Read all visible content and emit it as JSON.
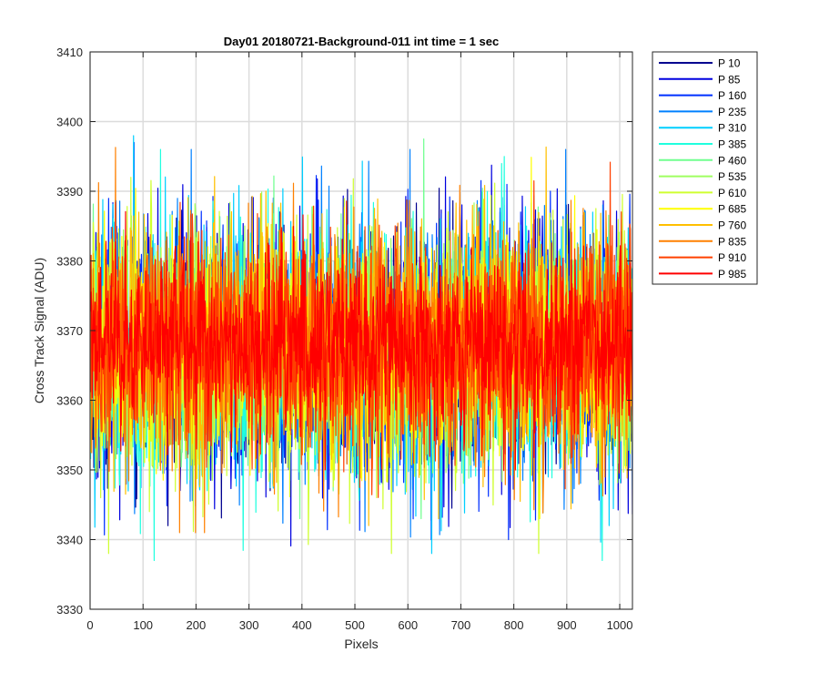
{
  "chart_data": {
    "type": "line",
    "title": "Day01 20180721-Background-011 int time = 1 sec",
    "xlabel": "Pixels",
    "ylabel": "Cross Track Signal (ADU)",
    "xlim": [
      0,
      1024
    ],
    "ylim": [
      3330,
      3410
    ],
    "xticks": [
      0,
      100,
      200,
      300,
      400,
      500,
      600,
      700,
      800,
      900,
      1000
    ],
    "yticks": [
      3330,
      3340,
      3350,
      3360,
      3370,
      3380,
      3390,
      3400,
      3410
    ],
    "grid": true,
    "legend_position": "outside-top-right",
    "series": [
      {
        "name": "P 10",
        "color": "#00008f",
        "mean": 3367,
        "min": 3342,
        "max": 3398
      },
      {
        "name": "P 85",
        "color": "#0000df",
        "mean": 3367,
        "min": 3332,
        "max": 3396
      },
      {
        "name": "P 160",
        "color": "#0030ff",
        "mean": 3367,
        "min": 3340,
        "max": 3397
      },
      {
        "name": "P 235",
        "color": "#0080ff",
        "mean": 3367,
        "min": 3336,
        "max": 3396
      },
      {
        "name": "P 310",
        "color": "#00cfff",
        "mean": 3367,
        "min": 3338,
        "max": 3402
      },
      {
        "name": "P 385",
        "color": "#20ffdf",
        "mean": 3367,
        "min": 3337,
        "max": 3396
      },
      {
        "name": "P 460",
        "color": "#70ff8f",
        "mean": 3367,
        "min": 3343,
        "max": 3400
      },
      {
        "name": "P 535",
        "color": "#9fff60",
        "mean": 3367,
        "min": 3344,
        "max": 3401
      },
      {
        "name": "P 610",
        "color": "#cfff30",
        "mean": 3367,
        "min": 3338,
        "max": 3402
      },
      {
        "name": "P 685",
        "color": "#ffff00",
        "mean": 3367,
        "min": 3343,
        "max": 3404
      },
      {
        "name": "P 760",
        "color": "#ffbf00",
        "mean": 3368,
        "min": 3341,
        "max": 3403
      },
      {
        "name": "P 835",
        "color": "#ff8000",
        "mean": 3368,
        "min": 3341,
        "max": 3406
      },
      {
        "name": "P 910",
        "color": "#ff4000",
        "mean": 3368,
        "min": 3343,
        "max": 3397
      },
      {
        "name": "P 985",
        "color": "#ff0000",
        "mean": 3368,
        "min": 3335,
        "max": 3388
      }
    ]
  }
}
